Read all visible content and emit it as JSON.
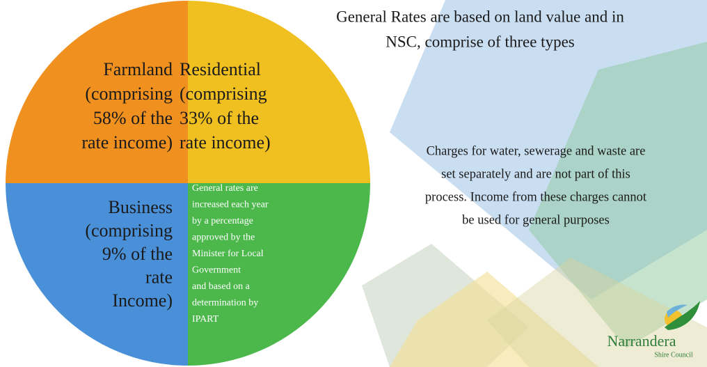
{
  "title": {
    "lines": [
      "General Rates are based on land value and in",
      "NSC, comprise of three types"
    ]
  },
  "quadrants": {
    "farmland": {
      "lines": [
        "Farmland",
        "(comprising",
        "58% of the",
        "rate income)"
      ]
    },
    "residential": {
      "lines": [
        "Residential",
        "(comprising",
        "33% of the",
        "rate income)"
      ]
    },
    "business": {
      "lines": [
        "Business",
        "(comprising",
        "9% of the",
        "rate",
        "Income)"
      ]
    },
    "note": {
      "lines": [
        "General rates are",
        "increased each year",
        "by a percentage",
        "approved by the",
        "Minister for Local",
        "Government",
        "and based on a",
        "determination by",
        "IPART"
      ]
    }
  },
  "charges": {
    "lines": [
      "Charges for water, sewerage and waste are",
      "set separately and are not part of this",
      "process. Income from these charges cannot",
      "be used for general purposes"
    ]
  },
  "logo": {
    "name": "Narrandera",
    "subtitle": "Shire Council"
  }
}
